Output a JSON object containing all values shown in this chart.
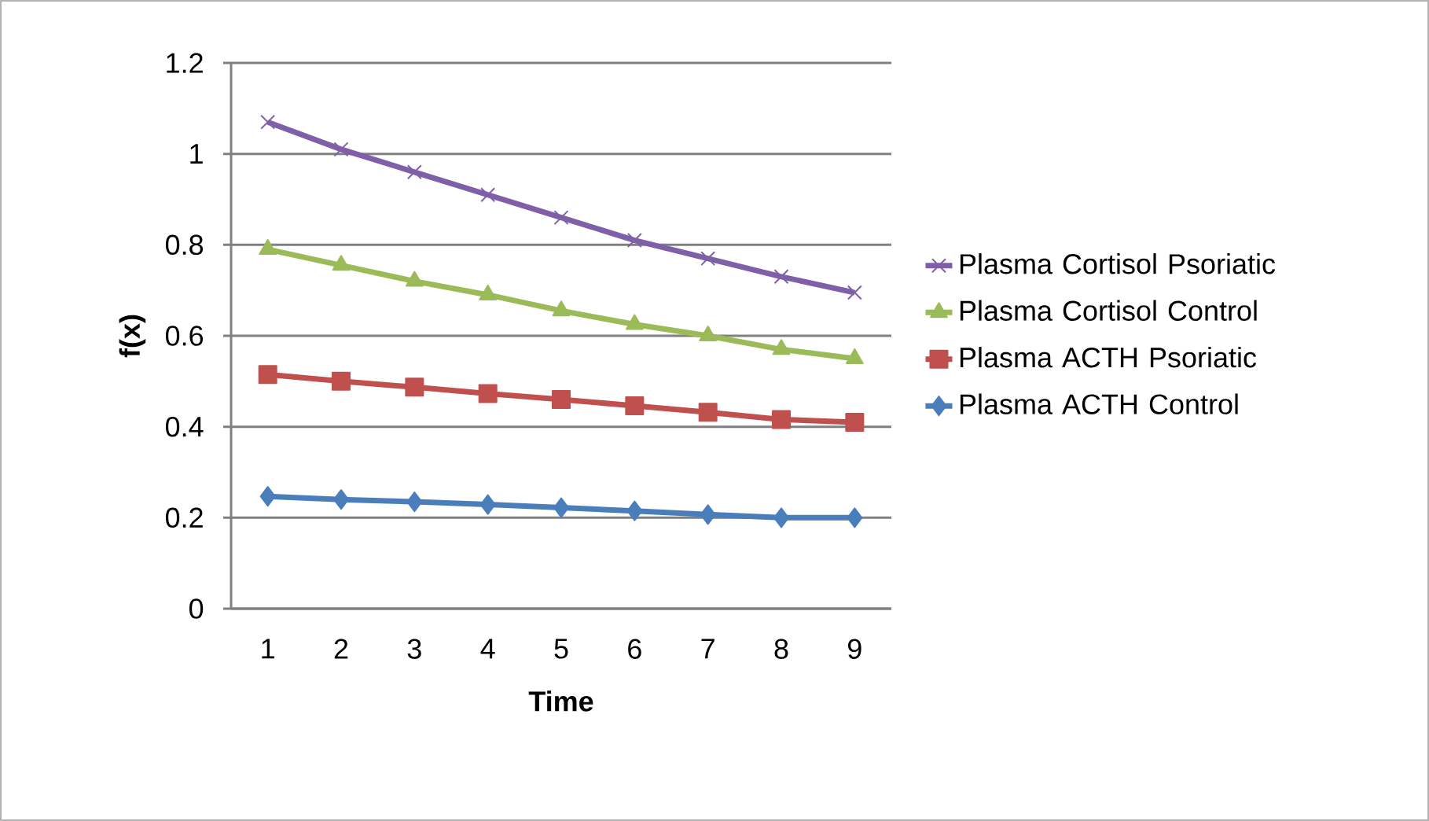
{
  "chart_data": {
    "type": "line",
    "xlabel": "Time",
    "ylabel": "f(x)",
    "categories": [
      "1",
      "2",
      "3",
      "4",
      "5",
      "6",
      "7",
      "8",
      "9"
    ],
    "series": [
      {
        "name": "Plasma Cortisol Psoriatic",
        "color": "#7f60a8",
        "marker": "cross",
        "values": [
          1.07,
          1.01,
          0.96,
          0.91,
          0.86,
          0.81,
          0.77,
          0.73,
          0.695
        ]
      },
      {
        "name": "Plasma Cortisol Control",
        "color": "#9bbb59",
        "marker": "triangle",
        "values": [
          0.79,
          0.755,
          0.72,
          0.69,
          0.655,
          0.625,
          0.6,
          0.57,
          0.55
        ]
      },
      {
        "name": "Plasma ACTH Psoriatic",
        "color": "#c0504d",
        "marker": "square",
        "values": [
          0.515,
          0.5,
          0.487,
          0.473,
          0.46,
          0.446,
          0.432,
          0.416,
          0.41
        ]
      },
      {
        "name": "Plasma ACTH Control",
        "color": "#4a7ebb",
        "marker": "diamond",
        "values": [
          0.247,
          0.24,
          0.235,
          0.229,
          0.222,
          0.215,
          0.207,
          0.2,
          0.2
        ]
      }
    ],
    "ylim": [
      0,
      1.2
    ],
    "yticks": [
      0,
      0.2,
      0.4,
      0.6,
      0.8,
      1,
      1.2
    ],
    "grid": "y",
    "legend": "right"
  }
}
